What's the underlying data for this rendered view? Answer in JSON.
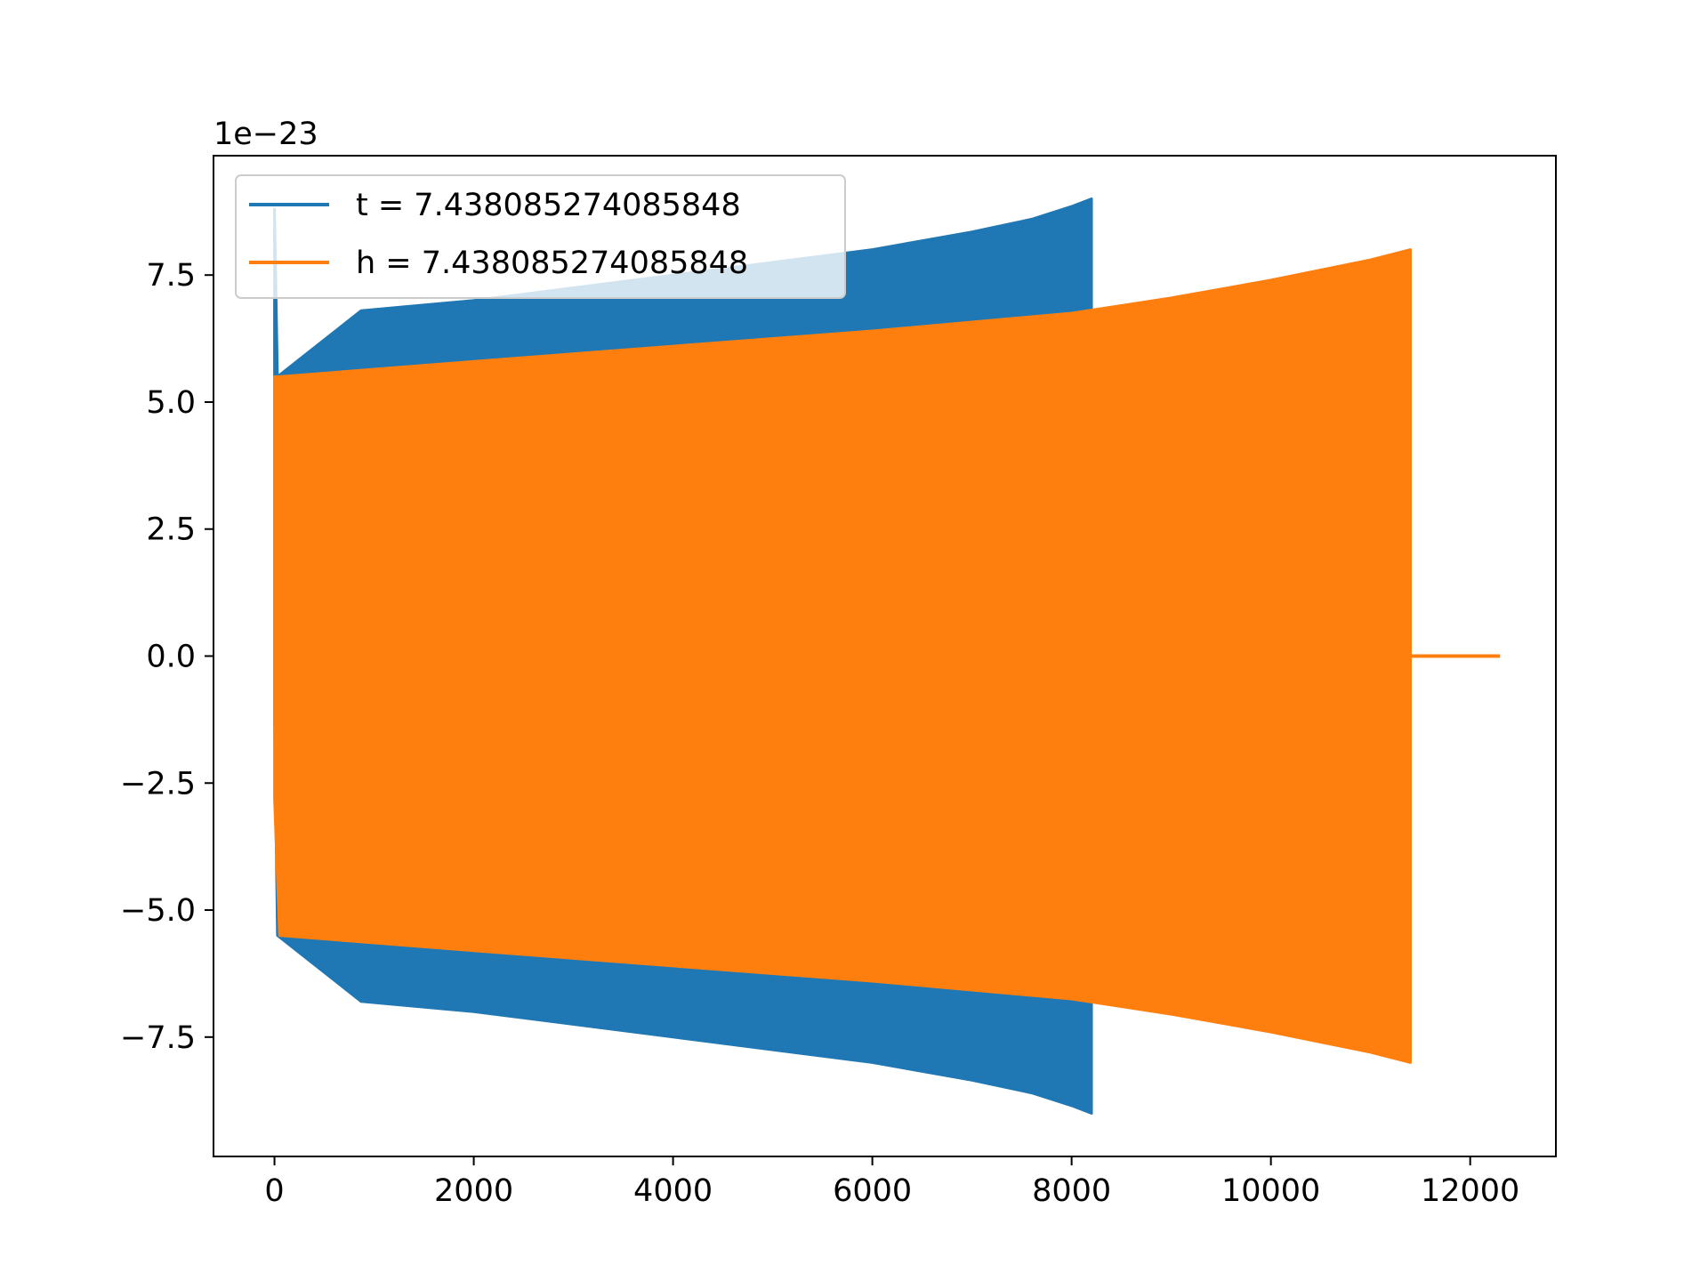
{
  "chart_data": {
    "type": "line",
    "title": "",
    "xlabel": "",
    "ylabel": "",
    "y_offset_label": "1e−23",
    "xlim": [
      -612,
      12860
    ],
    "ylim": [
      -9.85,
      9.85
    ],
    "x_ticks": [
      0,
      2000,
      4000,
      6000,
      8000,
      10000,
      12000
    ],
    "x_tick_labels": [
      "0",
      "2000",
      "4000",
      "6000",
      "8000",
      "10000",
      "12000"
    ],
    "y_ticks": [
      -7.5,
      -5.0,
      -2.5,
      0.0,
      2.5,
      5.0,
      7.5
    ],
    "y_tick_labels": [
      "−7.5",
      "−5.0",
      "−2.5",
      "0.0",
      "2.5",
      "5.0",
      "7.5"
    ],
    "grid": false,
    "legend_position": "upper-left",
    "series": [
      {
        "name": "t = 7.438085274085848",
        "color": "#1f77b4",
        "envelope": {
          "x": [
            0,
            30,
            870,
            2000,
            4000,
            6000,
            7000,
            7600,
            8000,
            8200
          ],
          "upper": [
            8.8,
            5.5,
            6.8,
            7.0,
            7.5,
            8.0,
            8.35,
            8.6,
            8.85,
            9.0
          ],
          "lower": [
            -1.3,
            -5.5,
            -6.8,
            -7.0,
            -7.5,
            -8.0,
            -8.35,
            -8.6,
            -8.85,
            -9.0
          ]
        }
      },
      {
        "name": "h = 7.438085274085848",
        "color": "#ff7f0e",
        "envelope": {
          "x": [
            0,
            50,
            2000,
            4000,
            6000,
            8000,
            9000,
            10000,
            11000,
            11400
          ],
          "upper": [
            5.5,
            5.5,
            5.8,
            6.1,
            6.4,
            6.75,
            7.05,
            7.4,
            7.8,
            8.0
          ],
          "lower": [
            -2.8,
            -5.5,
            -5.8,
            -6.1,
            -6.4,
            -6.75,
            -7.05,
            -7.4,
            -7.8,
            -8.0
          ]
        },
        "tail": {
          "x": [
            11400,
            12300
          ],
          "y": [
            0,
            0
          ]
        }
      }
    ]
  }
}
